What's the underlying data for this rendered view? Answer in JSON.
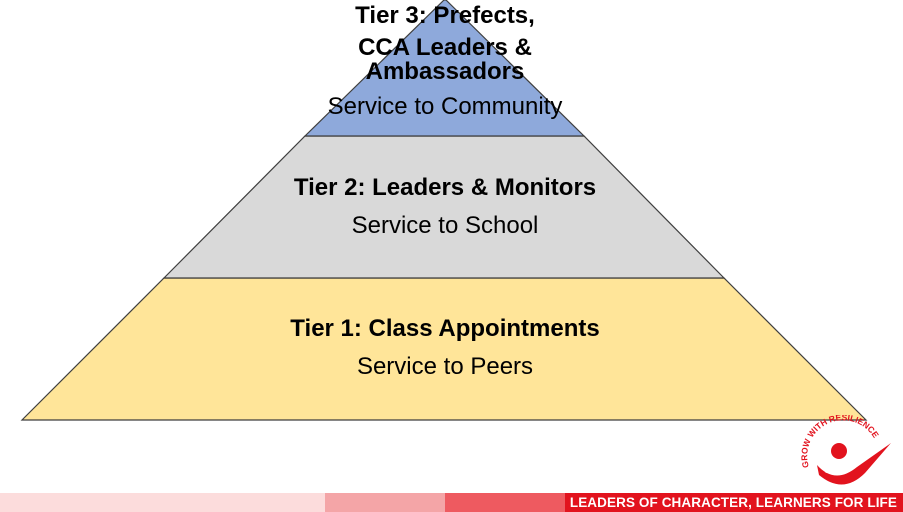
{
  "pyramid": {
    "tiers": [
      {
        "level": 3,
        "title_lines": [
          "Tier 3: Prefects,",
          "CCA Leaders &",
          "Ambassadors"
        ],
        "subtitle": "Service to Community",
        "fill": "#8ea9db"
      },
      {
        "level": 2,
        "title": "Tier 2: Leaders & Monitors",
        "subtitle": "Service to School",
        "fill": "#d9d9d9"
      },
      {
        "level": 1,
        "title": "Tier 1: Class Appointments",
        "subtitle": "Service to Peers",
        "fill": "#ffe599"
      }
    ],
    "outline_color": "#3f3f3f"
  },
  "footer": {
    "motto": "LEADERS OF CHARACTER, LEARNERS FOR LIFE",
    "colors": [
      "#fcdcdc",
      "#f4a5a7",
      "#ee5a60",
      "#e2131e"
    ]
  },
  "logo": {
    "arc_text": "GROW WITH RESILIENCE",
    "icon": "school-crest-icon",
    "color": "#e2131e"
  }
}
